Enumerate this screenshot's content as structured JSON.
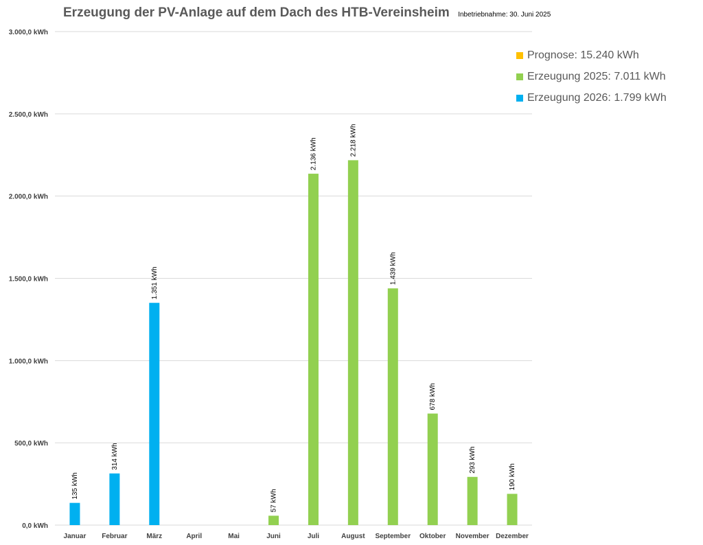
{
  "colors": {
    "prognose": "#FFC000",
    "erzeugung_2025": "#92D050",
    "erzeugung_2026": "#00B0F0",
    "grid": "#D9D9D9",
    "axis_text": "#404040"
  },
  "chart_data": {
    "type": "bar",
    "title": "Erzeugung der PV-Anlage auf dem Dach des HTB-Vereinsheim",
    "subtitle": "Inbetriebnahme: 30. Juni 2025",
    "xlabel": "",
    "ylabel": "",
    "ylim": [
      0,
      3000
    ],
    "grid": true,
    "legend_position": "top-right",
    "y_ticks": [
      0,
      500,
      1000,
      1500,
      2000,
      2500,
      3000
    ],
    "y_tick_labels": [
      "0,0 kWh",
      "500,0 kWh",
      "1.000,0 kWh",
      "1.500,0 kWh",
      "2.000,0 kWh",
      "2.500,0 kWh",
      "3.000,0 kWh"
    ],
    "categories": [
      "Januar",
      "Februar",
      "März",
      "April",
      "Mai",
      "Juni",
      "Juli",
      "August",
      "September",
      "Oktober",
      "November",
      "Dezember"
    ],
    "series": [
      {
        "name": "Prognose",
        "legend_label": "Prognose: 15.240 kWh",
        "color_key": "prognose",
        "values": [
          null,
          null,
          null,
          null,
          null,
          null,
          null,
          null,
          null,
          null,
          null,
          null
        ],
        "labels": [
          null,
          null,
          null,
          null,
          null,
          null,
          null,
          null,
          null,
          null,
          null,
          null
        ]
      },
      {
        "name": "Erzeugung 2025",
        "legend_label": "Erzeugung 2025: 7.011 kWh",
        "color_key": "erzeugung_2025",
        "values": [
          null,
          null,
          null,
          null,
          null,
          57,
          2136,
          2218,
          1439,
          678,
          293,
          190
        ],
        "labels": [
          null,
          null,
          null,
          null,
          null,
          "57 kWh",
          "2.136 kWh",
          "2.218 kWh",
          "1.439 kWh",
          "678 kWh",
          "293 kWh",
          "190 kWh"
        ]
      },
      {
        "name": "Erzeugung 2026",
        "legend_label": "Erzeugung 2026: 1.799 kWh",
        "color_key": "erzeugung_2026",
        "values": [
          135,
          314,
          1351,
          null,
          null,
          null,
          null,
          null,
          null,
          null,
          null,
          null
        ],
        "labels": [
          "135 kWh",
          "314 kWh",
          "1.351 kWh",
          null,
          null,
          null,
          null,
          null,
          null,
          null,
          null,
          null
        ]
      }
    ]
  }
}
